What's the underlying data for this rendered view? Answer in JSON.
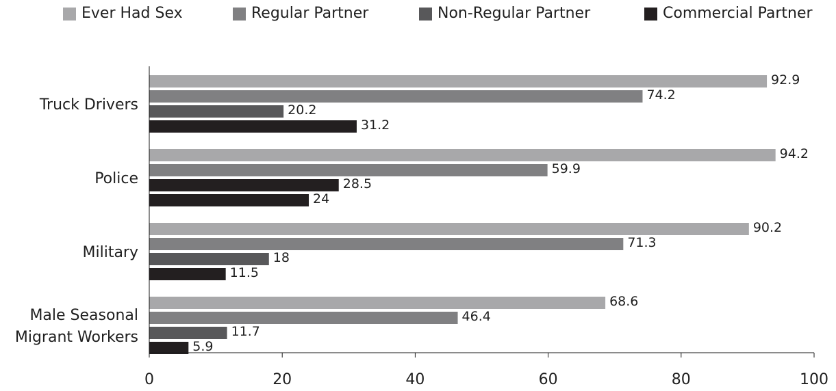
{
  "chart_data": {
    "type": "bar",
    "orientation": "horizontal",
    "categories": [
      "Truck Drivers",
      "Police",
      "Military",
      "Male Seasonal Migrant Workers"
    ],
    "category_lines": [
      [
        "Truck Drivers"
      ],
      [
        "Police"
      ],
      [
        "Military"
      ],
      [
        "Male Seasonal",
        "Migrant Workers"
      ]
    ],
    "series": [
      {
        "name": "Ever Had Sex",
        "color": "#a8a8aa",
        "values": [
          92.9,
          94.2,
          90.2,
          68.6
        ]
      },
      {
        "name": "Regular Partner",
        "color": "#808082",
        "values": [
          74.2,
          59.9,
          71.3,
          46.4
        ]
      },
      {
        "name": "Non-Regular Partner",
        "color": "#58585a",
        "values": [
          20.2,
          28.5,
          18,
          11.7
        ]
      },
      {
        "name": "Commercial Partner",
        "color": "#231f20",
        "values": [
          31.2,
          24,
          11.5,
          5.9
        ]
      }
    ],
    "bar_colors": [
      [
        "#a8a8aa",
        "#808082",
        "#58585a",
        "#231f20"
      ],
      [
        "#a8a8aa",
        "#808082",
        "#231f20",
        "#231f20"
      ],
      [
        "#a8a8aa",
        "#808082",
        "#58585a",
        "#231f20"
      ],
      [
        "#a8a8aa",
        "#808082",
        "#58585a",
        "#231f20"
      ]
    ],
    "value_labels": [
      [
        "92.9",
        "74.2",
        "20.2",
        "31.2"
      ],
      [
        "94.2",
        "59.9",
        "28.5",
        "24"
      ],
      [
        "90.2",
        "71.3",
        "18",
        "11.5"
      ],
      [
        "68.6",
        "46.4",
        "11.7",
        "5.9"
      ]
    ],
    "xlim": [
      0,
      100
    ],
    "x_ticks": [
      0,
      20,
      40,
      60,
      80,
      100
    ],
    "x_tick_labels": [
      "0",
      "20",
      "40",
      "60",
      "80",
      "100"
    ],
    "title": "",
    "xlabel": "",
    "ylabel": "",
    "grid": false,
    "legend_position": "top"
  }
}
